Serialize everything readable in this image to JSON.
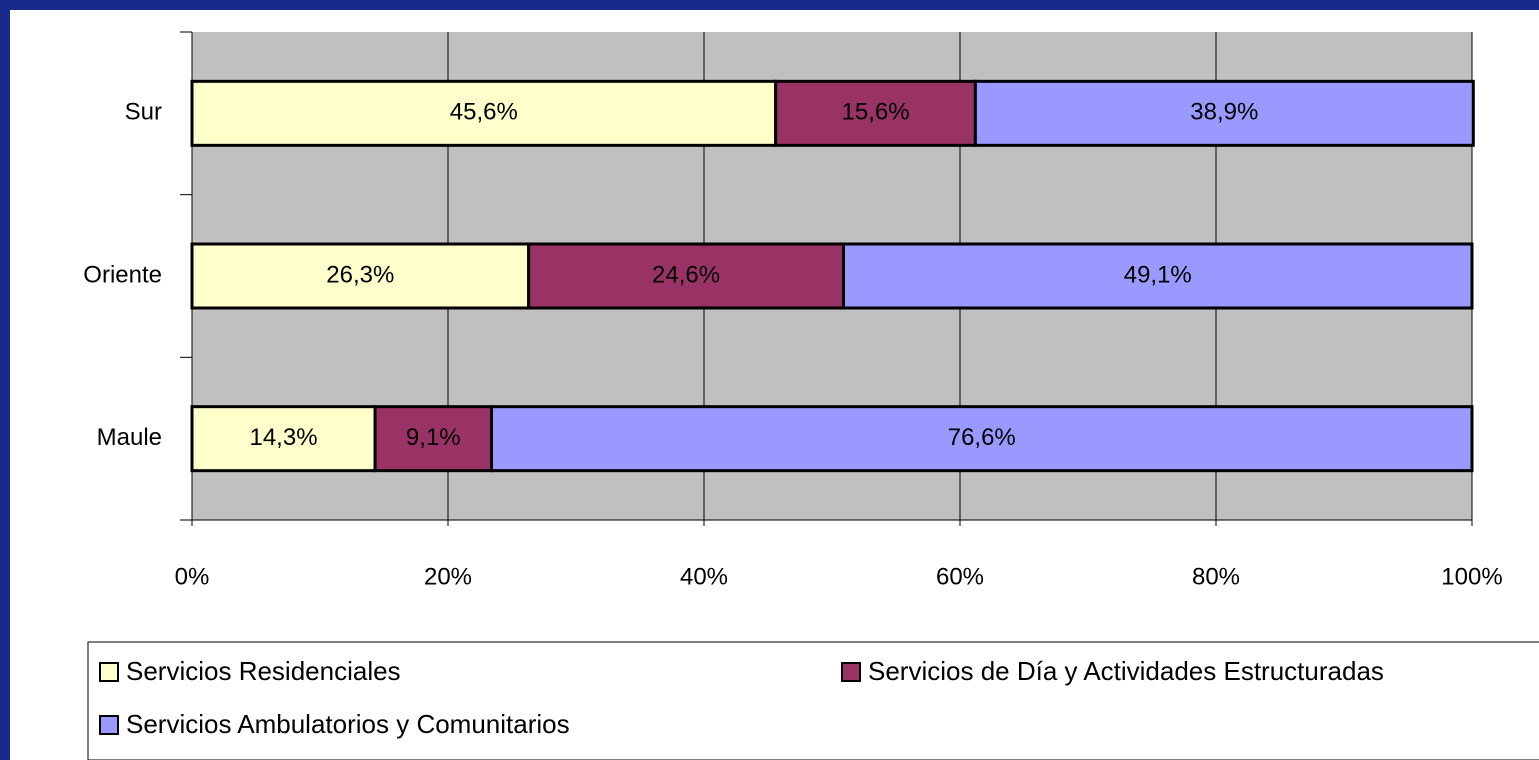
{
  "chart_data": {
    "type": "stacked-bar-horizontal",
    "categories": [
      "Sur",
      "Oriente",
      "Maule"
    ],
    "series": [
      {
        "name": "Servicios Residenciales",
        "color": "#ffffcc",
        "values": [
          45.6,
          26.3,
          14.3
        ],
        "value_labels": [
          "45,6%",
          "26,3%",
          "14,3%"
        ]
      },
      {
        "name": "Servicios de Día y Actividades Estructuradas",
        "color": "#993366",
        "values": [
          15.6,
          24.6,
          9.1
        ],
        "value_labels": [
          "15,6%",
          "24,6%",
          "9,1%"
        ]
      },
      {
        "name": "Servicios Ambulatorios y Comunitarios",
        "color": "#9999ff",
        "values": [
          38.9,
          49.1,
          76.6
        ],
        "value_labels": [
          "38,9%",
          "49,1%",
          "76,6%"
        ]
      }
    ],
    "xlim": [
      0,
      100
    ],
    "xticks": [
      {
        "value": 0,
        "label": "0%"
      },
      {
        "value": 20,
        "label": "20%"
      },
      {
        "value": 40,
        "label": "40%"
      },
      {
        "value": 60,
        "label": "60%"
      },
      {
        "value": 80,
        "label": "80%"
      },
      {
        "value": 100,
        "label": "100%"
      }
    ],
    "grid": true,
    "legend": "bottom"
  }
}
